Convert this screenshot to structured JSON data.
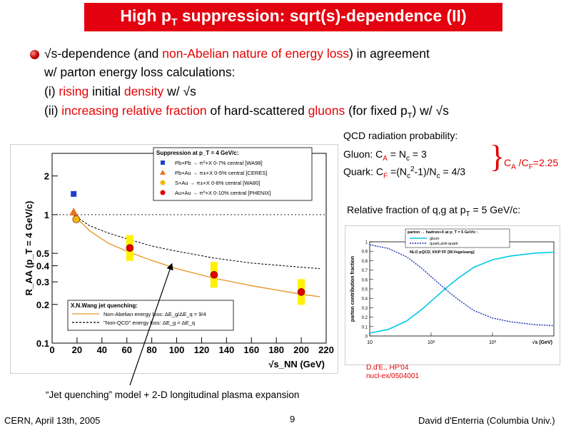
{
  "slide": {
    "title_main": "High p",
    "title_sub": "T",
    "title_rest": " suppression: sqrt(s)-dependence (II)",
    "bullet": {
      "l1_sqrt": "√",
      "l1_a": "s-dependence (and ",
      "l1_red": "non-Abelian nature of energy loss",
      "l1_b": ") in agreement",
      "l2": "w/ parton energy loss calculations:",
      "l3_a": "(i) ",
      "l3_red1": "rising",
      "l3_b": " initial ",
      "l3_red2": "density",
      "l3_c": " w/ √s",
      "l4_a": "(ii) ",
      "l4_red1": "increasing relative fraction",
      "l4_b": " of hard-scattered ",
      "l4_red2": "gluons",
      "l4_c": " (for fixed p",
      "l4_sub": "T",
      "l4_d": ") w/ √s"
    },
    "qcd": {
      "heading": "QCD radiation probability:",
      "gluon": "Gluon: C",
      "gluon_sub": "A",
      "gluon_b": " = N",
      "gluon_sub2": "c",
      "gluon_c": " = 3",
      "quark": "Quark: C",
      "quark_sub": "F",
      "quark_b": " =(N",
      "quark_sub2": "c",
      "quark_sup": "2",
      "quark_c": "-1)/N",
      "quark_sub3": "c",
      "quark_d": " = 4/3",
      "brace": "}",
      "ratio": "C",
      "ratio_sub1": "A",
      "ratio_b": " /C",
      "ratio_sub2": "F",
      "ratio_c": "=2.25"
    },
    "relative": {
      "text": "Relative fraction of q,g at p",
      "sub": "T",
      "rest": " = 5 GeV/c:"
    },
    "citation1": "D.d'E., HP'04",
    "citation2": "nucl-ex/0504001",
    "caption": "“Jet quenching” model + 2-D longitudinal plasma expansion",
    "footer_left": "CERN, April 13th, 2005",
    "footer_page": "9",
    "footer_right": "David d'Enterria (Columbia Univ.)"
  },
  "chart_data": [
    {
      "type": "scatter",
      "ylabel": "R_AA (p_T = 4 GeV/c)",
      "xlabel": "√s_NN (GeV)",
      "xlim": [
        0,
        220
      ],
      "ylim": [
        0.1,
        3
      ],
      "log_y": true,
      "x_ticks": [
        "0",
        "20",
        "40",
        "60",
        "80",
        "100",
        "120",
        "140",
        "160",
        "180",
        "200",
        "220"
      ],
      "y_ticks": [
        "0.1",
        "0.2",
        "0.3",
        "0.4",
        "0.5",
        "1",
        "2"
      ],
      "legend_title": "Suppression at p_T = 4 GeV/c:",
      "legend": [
        "Pb+Pb → π⁰+X  0-7%  central [WA98]",
        "Pb+Au → π±+X  0-5% central [CERES]",
        "S+Au → π±+X  0-8% central [WA80]",
        "Au+Au → π⁰+X  0-10% central [PHENIX]"
      ],
      "series": [
        {
          "name": "Pb+Pb → π⁰+X  0-7%  central [WA98]",
          "marker": "square",
          "color": "#1f3fd0",
          "points": [
            [
              17.3,
              1.45
            ]
          ]
        },
        {
          "name": "Pb+Au → π±+X  0-5% central [CERES]",
          "marker": "triangle",
          "color": "#e3741e",
          "points": [
            [
              17.3,
              1.05
            ]
          ]
        },
        {
          "name": "S+Au → π±+X  0-8% central [WA80]",
          "marker": "circle",
          "color": "#f2b705",
          "points": [
            [
              19.4,
              0.92
            ]
          ]
        },
        {
          "name": "Au+Au → π⁰+X  0-10% central [PHENIX]",
          "marker": "circle",
          "color": "#e00000",
          "points": [
            [
              62.4,
              0.55
            ],
            [
              130,
              0.34
            ],
            [
              200,
              0.25
            ]
          ]
        }
      ],
      "model_legend_title": "X.N.Wang jet quenching:",
      "model_curves": [
        {
          "name": "Non-Abelian energy loss: ΔE_g/ΔE_q = 9/4",
          "style": "solid",
          "color": "#e69a2c",
          "points": [
            [
              17,
              1.0
            ],
            [
              30,
              0.75
            ],
            [
              45,
              0.6
            ],
            [
              62,
              0.51
            ],
            [
              80,
              0.44
            ],
            [
              100,
              0.38
            ],
            [
              130,
              0.32
            ],
            [
              160,
              0.28
            ],
            [
              200,
              0.24
            ],
            [
              215,
              0.23
            ]
          ]
        },
        {
          "name": "\"Non-QCD\" energy loss: ΔE_g = ΔE_q",
          "style": "dashed",
          "color": "#000000",
          "points": [
            [
              17,
              1.0
            ],
            [
              30,
              0.82
            ],
            [
              45,
              0.72
            ],
            [
              62,
              0.64
            ],
            [
              80,
              0.57
            ],
            [
              100,
              0.52
            ],
            [
              130,
              0.46
            ],
            [
              160,
              0.42
            ],
            [
              200,
              0.39
            ],
            [
              215,
              0.38
            ]
          ]
        }
      ]
    },
    {
      "type": "line",
      "ylabel": "parton contribution fraction",
      "xlabel": "√s (GeV)",
      "log_x": true,
      "xlim": [
        10,
        10000
      ],
      "ylim": [
        0,
        1
      ],
      "x_ticks": [
        "10",
        "10²",
        "10³"
      ],
      "y_ticks": [
        "0",
        "0.1",
        "0.2",
        "0.3",
        "0.4",
        "0.5",
        "0.6",
        "0.7",
        "0.8",
        "0.9",
        "1"
      ],
      "legend_title": "parton → hadron+X at p_T = 5 GeV/c :",
      "annotation": "NLO pQCD, KKP FF [W.Vogelsang]",
      "series": [
        {
          "name": "gluon",
          "style": "solid",
          "color": "#00c8e8",
          "points": [
            [
              10,
              0.03
            ],
            [
              20,
              0.07
            ],
            [
              40,
              0.16
            ],
            [
              70,
              0.28
            ],
            [
              100,
              0.37
            ],
            [
              150,
              0.47
            ],
            [
              200,
              0.54
            ],
            [
              300,
              0.63
            ],
            [
              500,
              0.73
            ],
            [
              1000,
              0.81
            ],
            [
              2000,
              0.85
            ],
            [
              5000,
              0.88
            ],
            [
              10000,
              0.89
            ]
          ]
        },
        {
          "name": "quark,anti-quark",
          "style": "dotted",
          "color": "#1a2fb0",
          "points": [
            [
              10,
              0.97
            ],
            [
              20,
              0.93
            ],
            [
              40,
              0.84
            ],
            [
              70,
              0.72
            ],
            [
              100,
              0.63
            ],
            [
              150,
              0.53
            ],
            [
              200,
              0.46
            ],
            [
              300,
              0.37
            ],
            [
              500,
              0.27
            ],
            [
              1000,
              0.19
            ],
            [
              2000,
              0.15
            ],
            [
              5000,
              0.12
            ],
            [
              10000,
              0.11
            ]
          ]
        }
      ]
    }
  ]
}
